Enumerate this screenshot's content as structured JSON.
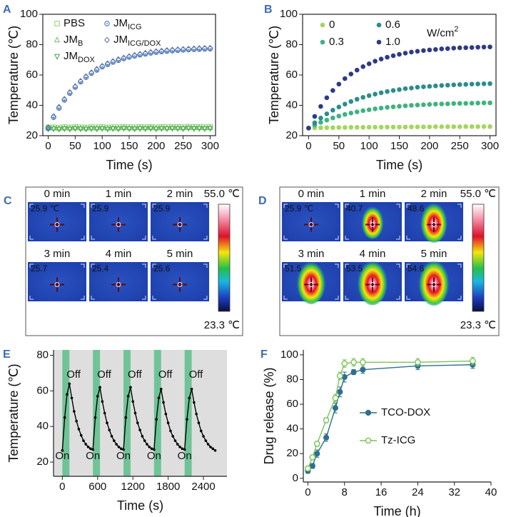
{
  "chart_data": [
    {
      "type": "line",
      "panel_label": "A",
      "xlabel": "Time (s)",
      "ylabel": "Temperature (℃)",
      "line": false,
      "xlim": [
        -10,
        310
      ],
      "ylim": [
        20,
        100
      ],
      "xticks": [
        0,
        50,
        100,
        150,
        200,
        250,
        300
      ],
      "yticks": [
        20,
        40,
        60,
        80,
        100
      ],
      "x": [
        0,
        10,
        20,
        30,
        40,
        50,
        60,
        70,
        80,
        90,
        100,
        110,
        120,
        130,
        140,
        150,
        160,
        170,
        180,
        190,
        200,
        210,
        220,
        230,
        240,
        250,
        260,
        270,
        280,
        290,
        300
      ],
      "series": [
        {
          "name": "PBS",
          "color": "#8fd16a",
          "marker": "square",
          "values": [
            25.5,
            25.6,
            25.4,
            25.7,
            25.5,
            25.8,
            25.6,
            25.5,
            25.7,
            25.6,
            25.8,
            25.5,
            25.7,
            25.6,
            25.9,
            25.7,
            25.6,
            25.8,
            25.7,
            25.9,
            25.6,
            25.8,
            25.7,
            25.9,
            25.8,
            25.7,
            26.0,
            25.8,
            25.9,
            25.7,
            25.9
          ]
        },
        {
          "name": "JM",
          "name_sub": "B",
          "color": "#6fbf6a",
          "marker": "triangle",
          "values": [
            24.9,
            25.0,
            24.8,
            25.1,
            24.9,
            25.2,
            25.0,
            24.9,
            25.1,
            25.0,
            25.2,
            24.9,
            25.1,
            25.0,
            25.3,
            25.1,
            25.0,
            25.2,
            25.1,
            25.3,
            25.0,
            25.2,
            25.1,
            25.3,
            25.2,
            25.1,
            25.4,
            25.2,
            25.3,
            25.1,
            25.3
          ]
        },
        {
          "name": "JM",
          "name_sub": "DOX",
          "color": "#3fa44a",
          "marker": "triangle-down",
          "values": [
            24.4,
            24.5,
            24.3,
            24.6,
            24.4,
            24.7,
            24.5,
            24.4,
            24.6,
            24.5,
            24.7,
            24.4,
            24.6,
            24.5,
            24.8,
            24.6,
            24.5,
            24.7,
            24.6,
            24.8,
            24.5,
            24.7,
            24.6,
            24.8,
            24.7,
            24.6,
            24.9,
            24.7,
            24.8,
            24.6,
            24.8
          ]
        },
        {
          "name": "JM",
          "name_sub": "ICG",
          "color": "#2f6db0",
          "marker": "circle-dot",
          "values": [
            25,
            32.1,
            38.2,
            43.5,
            48.0,
            52.0,
            55.5,
            58.5,
            61.1,
            63.3,
            65.4,
            67.0,
            68.5,
            69.7,
            70.8,
            71.8,
            72.6,
            73.3,
            73.9,
            74.5,
            75.0,
            75.4,
            75.7,
            76.0,
            76.3,
            76.5,
            76.7,
            76.9,
            77.0,
            77.2,
            77.3
          ]
        },
        {
          "name": "JM",
          "name_sub": "ICG/DOX",
          "color": "#5b6fae",
          "marker": "diamond",
          "values": [
            25.5,
            32.8,
            38.9,
            44.1,
            48.6,
            52.5,
            56.0,
            59.1,
            61.6,
            63.9,
            65.9,
            67.6,
            69.0,
            70.3,
            71.3,
            72.3,
            73.1,
            73.8,
            74.4,
            75.0,
            75.5,
            75.9,
            76.3,
            76.6,
            76.8,
            77.0,
            77.2,
            77.4,
            77.6,
            77.7,
            77.8
          ]
        }
      ]
    },
    {
      "type": "line",
      "panel_label": "B",
      "xlabel": "Time (s)",
      "ylabel": "Temperature (℃)",
      "line": false,
      "legend_title": "W/cm",
      "legend_title_sup": "2",
      "xlim": [
        -10,
        310
      ],
      "ylim": [
        20,
        100
      ],
      "xticks": [
        0,
        50,
        100,
        150,
        200,
        250,
        300
      ],
      "yticks": [
        20,
        40,
        60,
        80,
        100
      ],
      "x": [
        0,
        10,
        20,
        30,
        40,
        50,
        60,
        70,
        80,
        90,
        100,
        110,
        120,
        130,
        140,
        150,
        160,
        170,
        180,
        190,
        200,
        210,
        220,
        230,
        240,
        250,
        260,
        270,
        280,
        290,
        300
      ],
      "series": [
        {
          "name": "0",
          "color": "#a3d65c",
          "marker": "dot",
          "values": [
            25.0,
            25.1,
            25.2,
            25.3,
            25.3,
            25.4,
            25.4,
            25.5,
            25.5,
            25.5,
            25.6,
            25.6,
            25.6,
            25.7,
            25.7,
            25.7,
            25.7,
            25.8,
            25.8,
            25.8,
            25.8,
            25.9,
            25.9,
            25.9,
            25.9,
            25.9,
            26.0,
            26.0,
            26.0,
            26.0,
            26.0
          ]
        },
        {
          "name": "0.3",
          "color": "#3fb27f",
          "marker": "dot",
          "values": [
            25,
            27.0,
            28.8,
            30.3,
            31.7,
            32.9,
            34.0,
            34.9,
            35.7,
            36.5,
            37.1,
            37.7,
            38.2,
            38.7,
            39.0,
            39.4,
            39.7,
            40.0,
            40.2,
            40.4,
            40.6,
            40.8,
            40.9,
            41.0,
            41.2,
            41.3,
            41.3,
            41.4,
            41.5,
            41.6,
            41.6
          ]
        },
        {
          "name": "0.6",
          "color": "#2b8c8c",
          "marker": "dot",
          "values": [
            25,
            28.5,
            31.6,
            34.4,
            36.8,
            38.9,
            40.8,
            42.5,
            44.0,
            45.3,
            46.4,
            47.4,
            48.3,
            49.1,
            49.8,
            50.4,
            51.0,
            51.4,
            51.9,
            52.2,
            52.5,
            52.8,
            53.1,
            53.3,
            53.5,
            53.7,
            53.8,
            54.0,
            54.1,
            54.2,
            54.3
          ]
        },
        {
          "name": "1.0",
          "color": "#2e3a87",
          "marker": "dot",
          "values": [
            25,
            32.7,
            39.3,
            45.0,
            49.8,
            54.0,
            57.6,
            60.6,
            63.2,
            65.5,
            67.4,
            69.1,
            70.5,
            71.7,
            72.7,
            73.6,
            74.4,
            75.1,
            75.6,
            76.1,
            76.5,
            76.8,
            77.2,
            77.4,
            77.7,
            77.9,
            78.0,
            78.1,
            78.3,
            78.4,
            78.5
          ]
        }
      ]
    },
    {
      "type": "thermal-image",
      "panel_label": "C",
      "scale_max": "55.0 ℃",
      "scale_min": "23.3 ℃",
      "frames": [
        {
          "label": "0 min",
          "reading": "25.9 ℃"
        },
        {
          "label": "1 min",
          "reading": "25.9"
        },
        {
          "label": "2 min",
          "reading": "25.9"
        },
        {
          "label": "3 min",
          "reading": "25.7"
        },
        {
          "label": "4 min",
          "reading": "25.4"
        },
        {
          "label": "5 min",
          "reading": "25.6"
        }
      ]
    },
    {
      "type": "thermal-image",
      "panel_label": "D",
      "scale_max": "55.0 ℃",
      "scale_min": "23.3 ℃",
      "frames": [
        {
          "label": "0 min",
          "reading": "25.9 ℃"
        },
        {
          "label": "1 min",
          "reading": "40.7"
        },
        {
          "label": "2 min",
          "reading": "48.6"
        },
        {
          "label": "3 min",
          "reading": "51.5"
        },
        {
          "label": "4 min",
          "reading": "53.5"
        },
        {
          "label": "5 min",
          "reading": "54.6"
        }
      ]
    },
    {
      "type": "line",
      "panel_label": "E",
      "xlabel": "Time (s)",
      "ylabel": "Temperature (℃)",
      "line": true,
      "plot_background": "#dedede",
      "band_color": "#5cc08a",
      "on_color": "#c0504d",
      "bands": [
        [
          0,
          120
        ],
        [
          520,
          640
        ],
        [
          1040,
          1160
        ],
        [
          1560,
          1680
        ],
        [
          2080,
          2200
        ]
      ],
      "on_labels": [
        "On",
        "On",
        "On",
        "On",
        "On"
      ],
      "off_labels": [
        "Off",
        "Off",
        "Off",
        "Off",
        "Off"
      ],
      "xlim": [
        -150,
        2800
      ],
      "ylim": [
        12,
        83
      ],
      "xticks": [
        0,
        600,
        1200,
        1800,
        2400
      ],
      "yticks": [
        20,
        40,
        60,
        80
      ],
      "x": [
        0,
        40,
        80,
        120,
        160,
        200,
        240,
        280,
        320,
        360,
        400,
        440,
        480,
        520,
        560,
        600,
        640,
        680,
        720,
        760,
        800,
        840,
        880,
        920,
        960,
        1000,
        1040,
        1080,
        1120,
        1160,
        1200,
        1240,
        1280,
        1320,
        1360,
        1400,
        1440,
        1480,
        1520,
        1560,
        1600,
        1640,
        1680,
        1720,
        1760,
        1800,
        1840,
        1880,
        1920,
        1960,
        2000,
        2040,
        2080,
        2120,
        2160,
        2200,
        2240,
        2280,
        2320,
        2360,
        2400,
        2440,
        2480,
        2520,
        2560,
        2600
      ],
      "series": [
        {
          "name": "Temperature",
          "color": "#000000",
          "marker": "small-dot",
          "values": [
            26.5,
            45,
            58,
            64,
            56,
            48.5,
            43,
            38.5,
            35,
            32,
            30,
            28.5,
            27.5,
            27,
            45,
            57,
            62,
            54,
            47.5,
            42,
            38,
            34.5,
            32,
            30,
            28.5,
            27.5,
            27,
            45,
            57,
            62,
            54,
            47.5,
            42,
            38,
            34.5,
            32,
            30,
            28.5,
            27.5,
            27,
            44,
            56,
            61,
            53.5,
            47,
            42,
            37.5,
            34.5,
            32,
            30,
            28.5,
            27.5,
            27,
            44,
            56,
            61,
            53.5,
            47,
            42,
            37.5,
            34.5,
            32,
            30,
            28.5,
            27.5,
            26.5
          ]
        }
      ]
    },
    {
      "type": "line",
      "panel_label": "F",
      "xlabel": "Time (h)",
      "ylabel": "Drug release (%)",
      "line": true,
      "xlim": [
        -1,
        40
      ],
      "ylim": [
        -3,
        104
      ],
      "xticks": [
        0,
        8,
        16,
        24,
        32,
        40
      ],
      "yticks": [
        0,
        20,
        40,
        60,
        80,
        100
      ],
      "x": [
        0,
        1,
        2,
        4,
        6,
        7,
        8,
        10,
        12,
        24,
        36
      ],
      "series": [
        {
          "name": "TCO-DOX",
          "color": "#2e6f8e",
          "marker": "circle",
          "values": [
            6,
            10,
            20,
            33,
            57,
            70,
            82,
            86,
            88,
            91,
            92
          ],
          "errors": [
            2,
            2,
            3,
            3,
            4,
            4,
            4,
            2,
            3,
            3,
            3
          ]
        },
        {
          "name": "Tz-ICG",
          "color": "#7ac35a",
          "marker": "open-circle",
          "values": [
            8,
            17,
            28,
            47,
            65,
            83,
            93,
            94,
            94,
            94,
            95
          ],
          "errors": [
            2,
            2,
            2,
            2,
            3,
            3,
            3,
            3,
            3,
            3,
            3
          ]
        }
      ]
    }
  ]
}
